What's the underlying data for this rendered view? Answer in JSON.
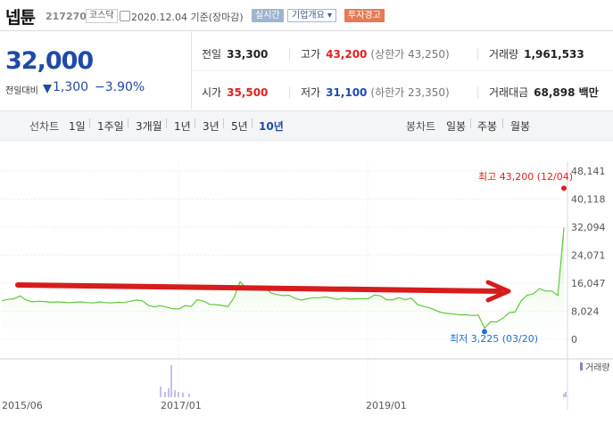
{
  "header": {
    "stock_name": "넵튠",
    "stock_code": "217270",
    "market": "코스닥",
    "date_text": "2020.12.04  기준(장마감)",
    "btn_realtime": "실시간",
    "btn_corp": "기업개요 ▾",
    "btn_warn": "투자경고"
  },
  "price": {
    "current": "32,000",
    "change_label": "전일대비",
    "change_value": "1,300",
    "change_percent": "−3.90%"
  },
  "info": {
    "prev_close_label": "전일",
    "prev_close": "33,300",
    "high_label": "고가",
    "high": "43,200",
    "upper_limit": "(상한가 43,250)",
    "volume_label": "거래량",
    "volume": "1,961,533",
    "open_label": "시가",
    "open": "35,500",
    "low_label": "저가",
    "low": "31,100",
    "lower_limit": "(하한가 23,350)",
    "amount_label": "거래대금",
    "amount": "68,898 백만"
  },
  "periods": {
    "line_label": "선차트",
    "line_items": [
      "1일",
      "1주일",
      "3개월",
      "1년",
      "3년",
      "5년",
      "10년"
    ],
    "active": "10년",
    "candle_label": "봉차트",
    "candle_items": [
      "일봉",
      "주봉",
      "월봉"
    ]
  },
  "colors": {
    "up": "#e02020",
    "down": "#1f4aa8",
    "line": "#5fc83b",
    "annotation": "#d61c1c"
  },
  "chart_data": {
    "type": "area",
    "yticks": [
      "48,141",
      "40,118",
      "32,094",
      "24,071",
      "16,047",
      "8,024",
      "0"
    ],
    "ylim": [
      0,
      48141
    ],
    "xticks": [
      "2015/06",
      "2017/01",
      "2019/01"
    ],
    "high_label": "최고 43,200 (12/04)",
    "low_label": "최저 3,225 (03/20)",
    "volume_legend": "거래량",
    "series": [
      {
        "values": [
          11000,
          11400,
          11600,
          12400,
          11200,
          10700,
          10900,
          10800,
          10600,
          10700,
          10600,
          10500,
          10600,
          10700,
          10500,
          10400,
          10700,
          10500,
          10400,
          10600,
          10500,
          10900,
          11200,
          11000,
          9700,
          9300,
          9600,
          9200,
          8700,
          8700,
          9600,
          9400,
          11300,
          10900,
          10000,
          9900,
          9700,
          9300,
          11900,
          16500,
          14600,
          14600,
          14300,
          15000,
          13300,
          12800,
          12500,
          12600,
          11700,
          11200,
          11600,
          11900,
          11900,
          12100,
          11800,
          11400,
          11800,
          11500,
          11600,
          11600,
          11600,
          12700,
          12400,
          11300,
          11300,
          11900,
          11300,
          11800,
          10000,
          9400,
          9000,
          8300,
          7600,
          7400,
          7200,
          7000,
          7000,
          6800,
          6900,
          3200,
          5000,
          5000,
          6000,
          7600,
          7800,
          11000,
          12600,
          13000,
          14500,
          13800,
          13800,
          12500,
          32000
        ]
      }
    ]
  }
}
